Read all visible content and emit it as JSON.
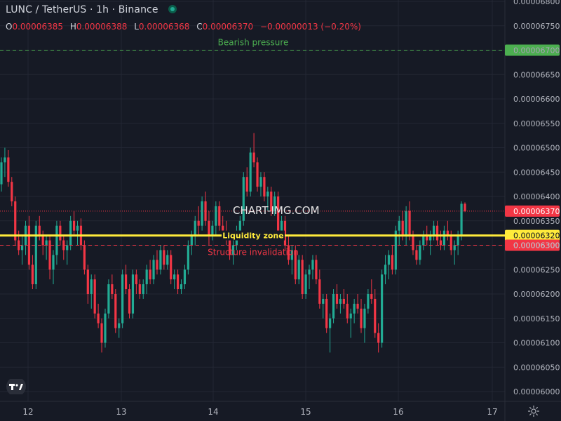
{
  "header": {
    "symbol": "LUNC",
    "separator": "/",
    "quote": "TetherUS",
    "interval_text": "· 1h ·",
    "exchange": "Binance"
  },
  "ohlc": {
    "o_label": "O",
    "o": "0.00006385",
    "h_label": "H",
    "h": "0.00006388",
    "l_label": "L",
    "l": "0.00006368",
    "c_label": "C",
    "c": "0.00006370",
    "change": "−0.00000013 (−0.20%)"
  },
  "watermark": "CHART-IMG.COM",
  "colors": {
    "background": "#161a25",
    "grid": "#232734",
    "up": "#22ab94",
    "down": "#f23645",
    "liquidity": "#ffeb3b",
    "bearish": "#4caf50",
    "structure": "#f23645"
  },
  "icons": {
    "logo": "tradingview-logo-icon",
    "settings": "gear-icon"
  },
  "chart_data": {
    "type": "candlestick",
    "symbol": "LUNC/USDT",
    "timeframe": "1h",
    "y_ticks": [
      "0.00006800",
      "0.00006750",
      "0.00006700",
      "0.00006650",
      "0.00006600",
      "0.00006550",
      "0.00006500",
      "0.00006450",
      "0.00006400",
      "0.00006350",
      "0.00006300",
      "0.00006250",
      "0.00006200",
      "0.00006150",
      "0.00006100",
      "0.00006050",
      "0.00006000"
    ],
    "y_range": [
      5.995e-05,
      6.802e-05
    ],
    "x_ticks": [
      "12",
      "13",
      "14",
      "15",
      "16",
      "17"
    ],
    "lines": [
      {
        "label": "Bearish pressure",
        "price": 6.7e-05,
        "price_label": "0.00006700",
        "style": "dashed",
        "color": "#4caf50"
      },
      {
        "label": "Liquidity zone",
        "price": 6.32e-05,
        "price_label": "0.00006320",
        "style": "solid",
        "color": "#ffeb3b"
      },
      {
        "label": "Structure invalidation",
        "price": 6.3e-05,
        "price_label": "0.00006300",
        "style": "dashed",
        "color": "#f23645"
      }
    ],
    "last_price": {
      "price": 6.37e-05,
      "label": "0.00006370",
      "color": "#f23645"
    },
    "candles": [
      {
        "o": 6425,
        "h": 6480,
        "l": 6410,
        "c": 6470
      },
      {
        "o": 6470,
        "h": 6500,
        "l": 6440,
        "c": 6480
      },
      {
        "o": 6480,
        "h": 6495,
        "l": 6420,
        "c": 6430
      },
      {
        "o": 6430,
        "h": 6440,
        "l": 6380,
        "c": 6390
      },
      {
        "o": 6390,
        "h": 6400,
        "l": 6300,
        "c": 6310
      },
      {
        "o": 6310,
        "h": 6330,
        "l": 6280,
        "c": 6290
      },
      {
        "o": 6290,
        "h": 6320,
        "l": 6260,
        "c": 6300
      },
      {
        "o": 6300,
        "h": 6350,
        "l": 6280,
        "c": 6340
      },
      {
        "o": 6340,
        "h": 6360,
        "l": 6250,
        "c": 6260
      },
      {
        "o": 6260,
        "h": 6280,
        "l": 6210,
        "c": 6220
      },
      {
        "o": 6220,
        "h": 6350,
        "l": 6210,
        "c": 6340
      },
      {
        "o": 6340,
        "h": 6360,
        "l": 6310,
        "c": 6320
      },
      {
        "o": 6320,
        "h": 6330,
        "l": 6280,
        "c": 6300
      },
      {
        "o": 6300,
        "h": 6320,
        "l": 6270,
        "c": 6310
      },
      {
        "o": 6310,
        "h": 6320,
        "l": 6230,
        "c": 6250
      },
      {
        "o": 6250,
        "h": 6290,
        "l": 6220,
        "c": 6280
      },
      {
        "o": 6280,
        "h": 6350,
        "l": 6260,
        "c": 6340
      },
      {
        "o": 6340,
        "h": 6350,
        "l": 6300,
        "c": 6310
      },
      {
        "o": 6310,
        "h": 6320,
        "l": 6270,
        "c": 6290
      },
      {
        "o": 6290,
        "h": 6310,
        "l": 6260,
        "c": 6300
      },
      {
        "o": 6300,
        "h": 6360,
        "l": 6290,
        "c": 6350
      },
      {
        "o": 6350,
        "h": 6370,
        "l": 6320,
        "c": 6330
      },
      {
        "o": 6330,
        "h": 6350,
        "l": 6300,
        "c": 6340
      },
      {
        "o": 6340,
        "h": 6355,
        "l": 6290,
        "c": 6300
      },
      {
        "o": 6300,
        "h": 6310,
        "l": 6240,
        "c": 6250
      },
      {
        "o": 6250,
        "h": 6260,
        "l": 6180,
        "c": 6200
      },
      {
        "o": 6200,
        "h": 6240,
        "l": 6170,
        "c": 6230
      },
      {
        "o": 6230,
        "h": 6240,
        "l": 6150,
        "c": 6160
      },
      {
        "o": 6160,
        "h": 6180,
        "l": 6130,
        "c": 6140
      },
      {
        "o": 6140,
        "h": 6150,
        "l": 6080,
        "c": 6100
      },
      {
        "o": 6100,
        "h": 6170,
        "l": 6090,
        "c": 6160
      },
      {
        "o": 6160,
        "h": 6230,
        "l": 6150,
        "c": 6220
      },
      {
        "o": 6220,
        "h": 6240,
        "l": 6190,
        "c": 6200
      },
      {
        "o": 6200,
        "h": 6210,
        "l": 6120,
        "c": 6130
      },
      {
        "o": 6130,
        "h": 6150,
        "l": 6110,
        "c": 6140
      },
      {
        "o": 6140,
        "h": 6250,
        "l": 6130,
        "c": 6240
      },
      {
        "o": 6240,
        "h": 6260,
        "l": 6200,
        "c": 6210
      },
      {
        "o": 6210,
        "h": 6220,
        "l": 6150,
        "c": 6160
      },
      {
        "o": 6160,
        "h": 6250,
        "l": 6150,
        "c": 6240
      },
      {
        "o": 6240,
        "h": 6250,
        "l": 6200,
        "c": 6220
      },
      {
        "o": 6220,
        "h": 6230,
        "l": 6190,
        "c": 6200
      },
      {
        "o": 6200,
        "h": 6230,
        "l": 6190,
        "c": 6220
      },
      {
        "o": 6220,
        "h": 6260,
        "l": 6200,
        "c": 6250
      },
      {
        "o": 6250,
        "h": 6270,
        "l": 6220,
        "c": 6230
      },
      {
        "o": 6230,
        "h": 6280,
        "l": 6220,
        "c": 6270
      },
      {
        "o": 6270,
        "h": 6290,
        "l": 6240,
        "c": 6250
      },
      {
        "o": 6250,
        "h": 6300,
        "l": 6240,
        "c": 6290
      },
      {
        "o": 6290,
        "h": 6300,
        "l": 6250,
        "c": 6260
      },
      {
        "o": 6260,
        "h": 6290,
        "l": 6250,
        "c": 6280
      },
      {
        "o": 6280,
        "h": 6290,
        "l": 6220,
        "c": 6230
      },
      {
        "o": 6230,
        "h": 6250,
        "l": 6210,
        "c": 6240
      },
      {
        "o": 6240,
        "h": 6250,
        "l": 6200,
        "c": 6210
      },
      {
        "o": 6210,
        "h": 6230,
        "l": 6200,
        "c": 6220
      },
      {
        "o": 6220,
        "h": 6260,
        "l": 6210,
        "c": 6250
      },
      {
        "o": 6250,
        "h": 6310,
        "l": 6240,
        "c": 6300
      },
      {
        "o": 6300,
        "h": 6330,
        "l": 6280,
        "c": 6320
      },
      {
        "o": 6320,
        "h": 6360,
        "l": 6300,
        "c": 6350
      },
      {
        "o": 6350,
        "h": 6380,
        "l": 6320,
        "c": 6340
      },
      {
        "o": 6340,
        "h": 6400,
        "l": 6330,
        "c": 6390
      },
      {
        "o": 6390,
        "h": 6410,
        "l": 6340,
        "c": 6350
      },
      {
        "o": 6350,
        "h": 6370,
        "l": 6300,
        "c": 6320
      },
      {
        "o": 6320,
        "h": 6350,
        "l": 6310,
        "c": 6340
      },
      {
        "o": 6340,
        "h": 6390,
        "l": 6320,
        "c": 6380
      },
      {
        "o": 6380,
        "h": 6390,
        "l": 6330,
        "c": 6340
      },
      {
        "o": 6340,
        "h": 6360,
        "l": 6310,
        "c": 6330
      },
      {
        "o": 6330,
        "h": 6350,
        "l": 6300,
        "c": 6310
      },
      {
        "o": 6310,
        "h": 6330,
        "l": 6270,
        "c": 6280
      },
      {
        "o": 6280,
        "h": 6310,
        "l": 6260,
        "c": 6300
      },
      {
        "o": 6300,
        "h": 6340,
        "l": 6290,
        "c": 6330
      },
      {
        "o": 6330,
        "h": 6360,
        "l": 6320,
        "c": 6350
      },
      {
        "o": 6350,
        "h": 6450,
        "l": 6340,
        "c": 6440
      },
      {
        "o": 6440,
        "h": 6460,
        "l": 6400,
        "c": 6410
      },
      {
        "o": 6410,
        "h": 6500,
        "l": 6400,
        "c": 6490
      },
      {
        "o": 6490,
        "h": 6530,
        "l": 6460,
        "c": 6470
      },
      {
        "o": 6470,
        "h": 6480,
        "l": 6410,
        "c": 6420
      },
      {
        "o": 6420,
        "h": 6450,
        "l": 6400,
        "c": 6440
      },
      {
        "o": 6440,
        "h": 6450,
        "l": 6390,
        "c": 6400
      },
      {
        "o": 6400,
        "h": 6420,
        "l": 6370,
        "c": 6410
      },
      {
        "o": 6410,
        "h": 6420,
        "l": 6360,
        "c": 6370
      },
      {
        "o": 6370,
        "h": 6410,
        "l": 6360,
        "c": 6400
      },
      {
        "o": 6400,
        "h": 6410,
        "l": 6320,
        "c": 6330
      },
      {
        "o": 6330,
        "h": 6360,
        "l": 6310,
        "c": 6350
      },
      {
        "o": 6350,
        "h": 6360,
        "l": 6290,
        "c": 6300
      },
      {
        "o": 6300,
        "h": 6320,
        "l": 6260,
        "c": 6270
      },
      {
        "o": 6270,
        "h": 6300,
        "l": 6240,
        "c": 6290
      },
      {
        "o": 6290,
        "h": 6300,
        "l": 6220,
        "c": 6230
      },
      {
        "o": 6230,
        "h": 6280,
        "l": 6220,
        "c": 6270
      },
      {
        "o": 6270,
        "h": 6280,
        "l": 6190,
        "c": 6200
      },
      {
        "o": 6200,
        "h": 6250,
        "l": 6190,
        "c": 6240
      },
      {
        "o": 6240,
        "h": 6260,
        "l": 6210,
        "c": 6250
      },
      {
        "o": 6250,
        "h": 6280,
        "l": 6230,
        "c": 6270
      },
      {
        "o": 6270,
        "h": 6280,
        "l": 6220,
        "c": 6230
      },
      {
        "o": 6230,
        "h": 6250,
        "l": 6170,
        "c": 6180
      },
      {
        "o": 6180,
        "h": 6200,
        "l": 6150,
        "c": 6190
      },
      {
        "o": 6190,
        "h": 6200,
        "l": 6120,
        "c": 6130
      },
      {
        "o": 6130,
        "h": 6160,
        "l": 6080,
        "c": 6150
      },
      {
        "o": 6150,
        "h": 6210,
        "l": 6140,
        "c": 6200
      },
      {
        "o": 6200,
        "h": 6220,
        "l": 6170,
        "c": 6180
      },
      {
        "o": 6180,
        "h": 6200,
        "l": 6160,
        "c": 6190
      },
      {
        "o": 6190,
        "h": 6210,
        "l": 6170,
        "c": 6180
      },
      {
        "o": 6180,
        "h": 6200,
        "l": 6140,
        "c": 6150
      },
      {
        "o": 6150,
        "h": 6170,
        "l": 6110,
        "c": 6160
      },
      {
        "o": 6160,
        "h": 6190,
        "l": 6140,
        "c": 6180
      },
      {
        "o": 6180,
        "h": 6200,
        "l": 6160,
        "c": 6170
      },
      {
        "o": 6170,
        "h": 6190,
        "l": 6120,
        "c": 6130
      },
      {
        "o": 6130,
        "h": 6180,
        "l": 6100,
        "c": 6170
      },
      {
        "o": 6170,
        "h": 6210,
        "l": 6160,
        "c": 6200
      },
      {
        "o": 6200,
        "h": 6230,
        "l": 6180,
        "c": 6190
      },
      {
        "o": 6190,
        "h": 6210,
        "l": 6110,
        "c": 6120
      },
      {
        "o": 6120,
        "h": 6140,
        "l": 6080,
        "c": 6100
      },
      {
        "o": 6100,
        "h": 6250,
        "l": 6090,
        "c": 6240
      },
      {
        "o": 6240,
        "h": 6280,
        "l": 6220,
        "c": 6260
      },
      {
        "o": 6260,
        "h": 6290,
        "l": 6230,
        "c": 6280
      },
      {
        "o": 6280,
        "h": 6300,
        "l": 6240,
        "c": 6250
      },
      {
        "o": 6250,
        "h": 6340,
        "l": 6240,
        "c": 6330
      },
      {
        "o": 6330,
        "h": 6360,
        "l": 6300,
        "c": 6350
      },
      {
        "o": 6350,
        "h": 6370,
        "l": 6310,
        "c": 6320
      },
      {
        "o": 6320,
        "h": 6380,
        "l": 6300,
        "c": 6370
      },
      {
        "o": 6370,
        "h": 6390,
        "l": 6310,
        "c": 6320
      },
      {
        "o": 6320,
        "h": 6330,
        "l": 6280,
        "c": 6290
      },
      {
        "o": 6290,
        "h": 6300,
        "l": 6260,
        "c": 6270
      },
      {
        "o": 6270,
        "h": 6310,
        "l": 6260,
        "c": 6300
      },
      {
        "o": 6300,
        "h": 6330,
        "l": 6290,
        "c": 6320
      },
      {
        "o": 6320,
        "h": 6340,
        "l": 6300,
        "c": 6310
      },
      {
        "o": 6310,
        "h": 6330,
        "l": 6280,
        "c": 6320
      },
      {
        "o": 6320,
        "h": 6350,
        "l": 6310,
        "c": 6340
      },
      {
        "o": 6340,
        "h": 6350,
        "l": 6300,
        "c": 6310
      },
      {
        "o": 6310,
        "h": 6330,
        "l": 6290,
        "c": 6300
      },
      {
        "o": 6300,
        "h": 6340,
        "l": 6290,
        "c": 6330
      },
      {
        "o": 6330,
        "h": 6350,
        "l": 6310,
        "c": 6320
      },
      {
        "o": 6320,
        "h": 6330,
        "l": 6280,
        "c": 6290
      },
      {
        "o": 6290,
        "h": 6310,
        "l": 6260,
        "c": 6300
      },
      {
        "o": 6300,
        "h": 6330,
        "l": 6280,
        "c": 6320
      },
      {
        "o": 6320,
        "h": 6390,
        "l": 6310,
        "c": 6385
      },
      {
        "o": 6385,
        "h": 6388,
        "l": 6368,
        "c": 6370
      }
    ]
  }
}
